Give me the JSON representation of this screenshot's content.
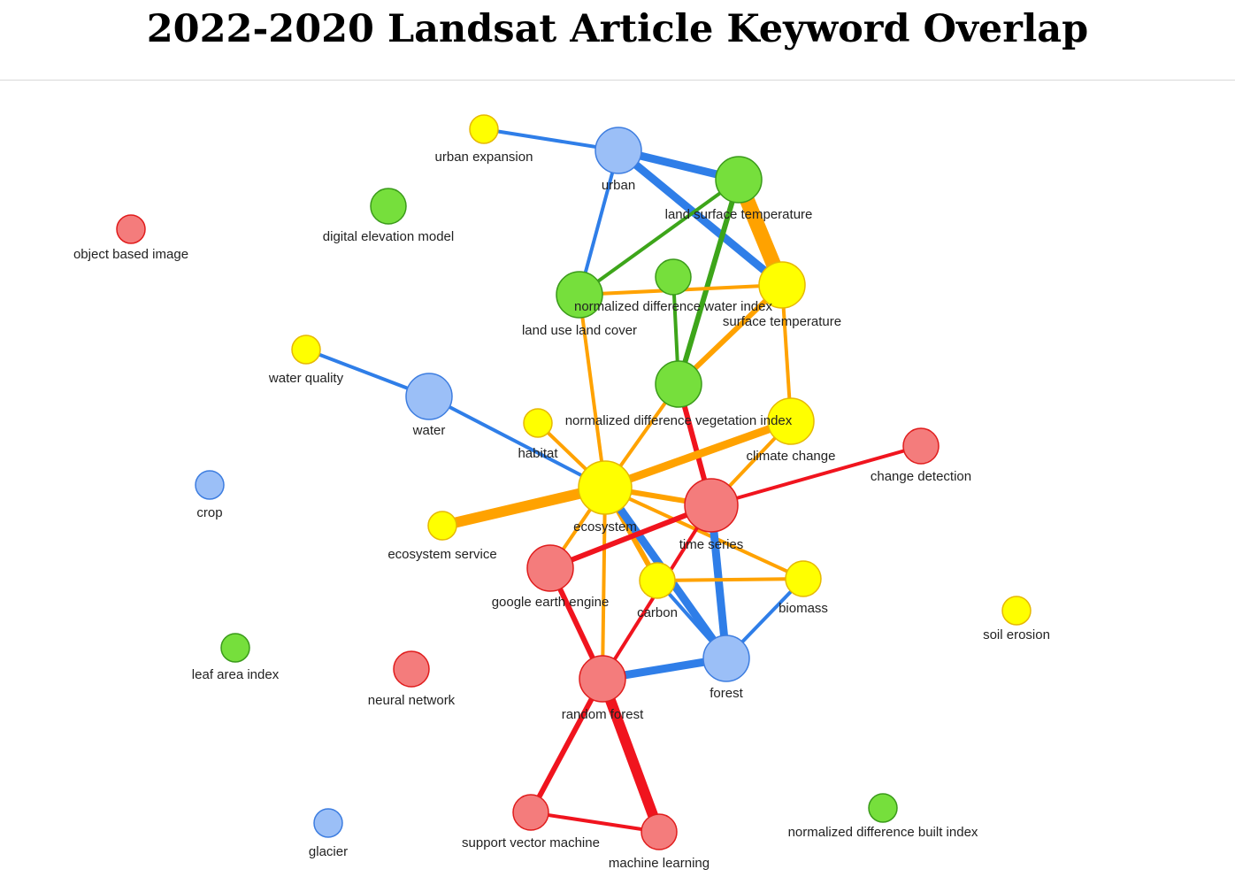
{
  "title": "2022-2020 Landsat Article Keyword Overlap",
  "colors": {
    "blue_node": "#9bbff7",
    "blue_node_stroke": "#3d7de0",
    "blue_edge": "#2f7ee8",
    "green_node": "#76df3c",
    "green_node_stroke": "#3a9a1a",
    "green_edge": "#3da51a",
    "yellow_node": "#ffff00",
    "yellow_node_stroke": "#e6b800",
    "orange_edge": "#ffa200",
    "red_node": "#f47c7c",
    "red_node_stroke": "#e01c1c",
    "red_edge": "#f0141e"
  },
  "nodes": [
    {
      "id": "urban_expansion",
      "label": "urban expansion",
      "group": "yellow",
      "weight": 1
    },
    {
      "id": "urban",
      "label": "urban",
      "group": "blue",
      "weight": 3
    },
    {
      "id": "land_surface_temperature",
      "label": "land surface temperature",
      "group": "green",
      "weight": 3
    },
    {
      "id": "digital_elevation_model",
      "label": "digital elevation model",
      "group": "green",
      "weight": 2
    },
    {
      "id": "object_based_image",
      "label": "object based image",
      "group": "red",
      "weight": 1
    },
    {
      "id": "land_use_land_cover",
      "label": "land use land cover",
      "group": "green",
      "weight": 3
    },
    {
      "id": "normalized_difference_water_index",
      "label": "normalized difference water index",
      "group": "green",
      "weight": 2
    },
    {
      "id": "surface_temperature",
      "label": "surface temperature",
      "group": "yellow",
      "weight": 3
    },
    {
      "id": "water_quality",
      "label": "water quality",
      "group": "yellow",
      "weight": 1
    },
    {
      "id": "water",
      "label": "water",
      "group": "blue",
      "weight": 3
    },
    {
      "id": "ndvi",
      "label": "normalized difference vegetation index",
      "group": "green",
      "weight": 3
    },
    {
      "id": "climate_change",
      "label": "climate change",
      "group": "yellow",
      "weight": 3
    },
    {
      "id": "habitat",
      "label": "habitat",
      "group": "yellow",
      "weight": 1
    },
    {
      "id": "change_detection",
      "label": "change detection",
      "group": "red",
      "weight": 2
    },
    {
      "id": "crop",
      "label": "crop",
      "group": "blue",
      "weight": 1
    },
    {
      "id": "ecosystem",
      "label": "ecosystem",
      "group": "yellow",
      "weight": 4
    },
    {
      "id": "time_series",
      "label": "time series",
      "group": "red",
      "weight": 4
    },
    {
      "id": "ecosystem_service",
      "label": "ecosystem service",
      "group": "yellow",
      "weight": 1
    },
    {
      "id": "google_earth_engine",
      "label": "google earth engine",
      "group": "red",
      "weight": 3
    },
    {
      "id": "carbon",
      "label": "carbon",
      "group": "yellow",
      "weight": 2
    },
    {
      "id": "biomass",
      "label": "biomass",
      "group": "yellow",
      "weight": 2
    },
    {
      "id": "soil_erosion",
      "label": "soil erosion",
      "group": "yellow",
      "weight": 1
    },
    {
      "id": "leaf_area_index",
      "label": "leaf area index",
      "group": "green",
      "weight": 1
    },
    {
      "id": "neural_network",
      "label": "neural network",
      "group": "red",
      "weight": 2
    },
    {
      "id": "forest",
      "label": "forest",
      "group": "blue",
      "weight": 3
    },
    {
      "id": "random_forest",
      "label": "random forest",
      "group": "red",
      "weight": 3
    },
    {
      "id": "support_vector_machine",
      "label": "support vector machine",
      "group": "red",
      "weight": 2
    },
    {
      "id": "machine_learning",
      "label": "machine learning",
      "group": "red",
      "weight": 2
    },
    {
      "id": "glacier",
      "label": "glacier",
      "group": "blue",
      "weight": 1
    },
    {
      "id": "normalized_difference_built_index",
      "label": "normalized difference built index",
      "group": "green",
      "weight": 1
    }
  ],
  "edges": [
    {
      "source": "urban_expansion",
      "target": "urban",
      "color": "blue",
      "weight": 2
    },
    {
      "source": "urban",
      "target": "land_surface_temperature",
      "color": "blue",
      "weight": 4
    },
    {
      "source": "urban",
      "target": "surface_temperature",
      "color": "blue",
      "weight": 4
    },
    {
      "source": "urban",
      "target": "land_use_land_cover",
      "color": "blue",
      "weight": 2
    },
    {
      "source": "land_surface_temperature",
      "target": "surface_temperature",
      "color": "orange",
      "weight": 7
    },
    {
      "source": "land_surface_temperature",
      "target": "land_use_land_cover",
      "color": "green",
      "weight": 2
    },
    {
      "source": "land_surface_temperature",
      "target": "ndvi",
      "color": "green",
      "weight": 3
    },
    {
      "source": "normalized_difference_water_index",
      "target": "ndvi",
      "color": "green",
      "weight": 2
    },
    {
      "source": "land_use_land_cover",
      "target": "surface_temperature",
      "color": "orange",
      "weight": 2
    },
    {
      "source": "land_use_land_cover",
      "target": "ecosystem",
      "color": "orange",
      "weight": 2
    },
    {
      "source": "surface_temperature",
      "target": "ndvi",
      "color": "orange",
      "weight": 3
    },
    {
      "source": "surface_temperature",
      "target": "climate_change",
      "color": "orange",
      "weight": 2
    },
    {
      "source": "water_quality",
      "target": "water",
      "color": "blue",
      "weight": 2
    },
    {
      "source": "water",
      "target": "ecosystem",
      "color": "blue",
      "weight": 2
    },
    {
      "source": "ndvi",
      "target": "ecosystem",
      "color": "orange",
      "weight": 2
    },
    {
      "source": "ndvi",
      "target": "time_series",
      "color": "red",
      "weight": 3
    },
    {
      "source": "habitat",
      "target": "ecosystem",
      "color": "orange",
      "weight": 2
    },
    {
      "source": "climate_change",
      "target": "ecosystem",
      "color": "orange",
      "weight": 4
    },
    {
      "source": "climate_change",
      "target": "time_series",
      "color": "orange",
      "weight": 2
    },
    {
      "source": "change_detection",
      "target": "time_series",
      "color": "red",
      "weight": 2
    },
    {
      "source": "ecosystem_service",
      "target": "ecosystem",
      "color": "orange",
      "weight": 5
    },
    {
      "source": "ecosystem",
      "target": "time_series",
      "color": "orange",
      "weight": 3
    },
    {
      "source": "ecosystem",
      "target": "google_earth_engine",
      "color": "orange",
      "weight": 2
    },
    {
      "source": "ecosystem",
      "target": "random_forest",
      "color": "orange",
      "weight": 2
    },
    {
      "source": "ecosystem",
      "target": "carbon",
      "color": "orange",
      "weight": 3
    },
    {
      "source": "ecosystem",
      "target": "forest",
      "color": "blue",
      "weight": 4
    },
    {
      "source": "ecosystem",
      "target": "biomass",
      "color": "orange",
      "weight": 2
    },
    {
      "source": "time_series",
      "target": "google_earth_engine",
      "color": "red",
      "weight": 3
    },
    {
      "source": "time_series",
      "target": "forest",
      "color": "blue",
      "weight": 4
    },
    {
      "source": "time_series",
      "target": "random_forest",
      "color": "red",
      "weight": 2
    },
    {
      "source": "carbon",
      "target": "biomass",
      "color": "orange",
      "weight": 2
    },
    {
      "source": "carbon",
      "target": "forest",
      "color": "blue",
      "weight": 2
    },
    {
      "source": "biomass",
      "target": "forest",
      "color": "blue",
      "weight": 2
    },
    {
      "source": "google_earth_engine",
      "target": "random_forest",
      "color": "red",
      "weight": 3
    },
    {
      "source": "random_forest",
      "target": "forest",
      "color": "blue",
      "weight": 4
    },
    {
      "source": "random_forest",
      "target": "support_vector_machine",
      "color": "red",
      "weight": 3
    },
    {
      "source": "random_forest",
      "target": "machine_learning",
      "color": "red",
      "weight": 5
    },
    {
      "source": "support_vector_machine",
      "target": "machine_learning",
      "color": "red",
      "weight": 2
    }
  ]
}
